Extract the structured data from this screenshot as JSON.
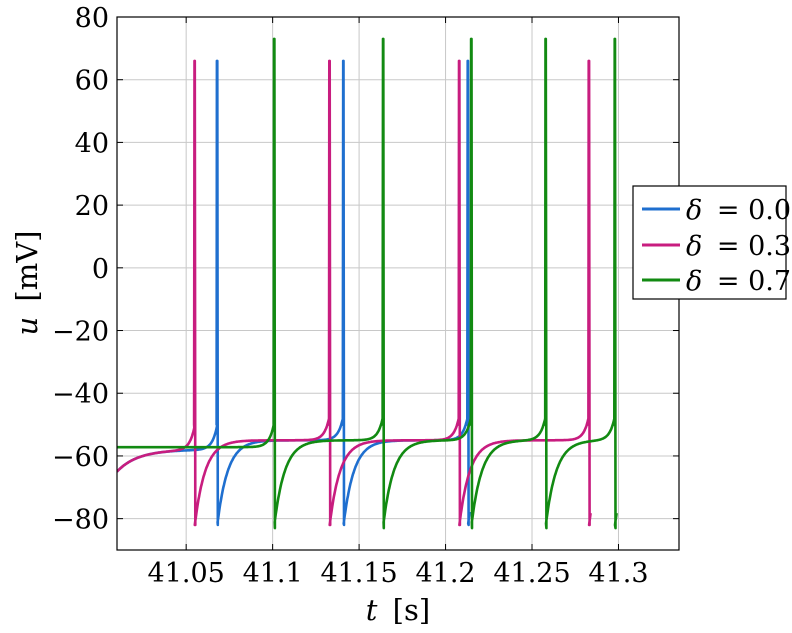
{
  "chart_data": {
    "type": "line",
    "title": "",
    "xlabel_var": "t",
    "xlabel_unit": "[s]",
    "ylabel_var": "u",
    "ylabel_unit": "[mV]",
    "xlim": [
      41.01,
      41.335
    ],
    "ylim": [
      -90,
      80
    ],
    "xticks": [
      41.05,
      41.1,
      41.15,
      41.2,
      41.25,
      41.3
    ],
    "xtick_labels": [
      "41.05",
      "41.1",
      "41.15",
      "41.2",
      "41.25",
      "41.3"
    ],
    "yticks": [
      -80,
      -60,
      -40,
      -20,
      0,
      20,
      40,
      60,
      80
    ],
    "ytick_labels": [
      "−80",
      "−60",
      "−40",
      "−20",
      "0",
      "20",
      "40",
      "60",
      "80"
    ],
    "grid": true,
    "legend_position": "right",
    "series": [
      {
        "name_var": "δ",
        "name_value": "= 0.0",
        "color": "#1f6fcf",
        "spikes": [
          41.068,
          41.141,
          41.213
        ],
        "peak": 66,
        "trough": -82
      },
      {
        "name_var": "δ",
        "name_value": "= 0.3",
        "color": "#c81d7f",
        "spikes": [
          41.055,
          41.133,
          41.208,
          41.283
        ],
        "peak": 66,
        "trough": -82
      },
      {
        "name_var": "δ",
        "name_value": "= 0.7",
        "color": "#128a12",
        "spikes": [
          41.101,
          41.164,
          41.215,
          41.258,
          41.298
        ],
        "peak": 73,
        "trough": -83
      }
    ]
  }
}
